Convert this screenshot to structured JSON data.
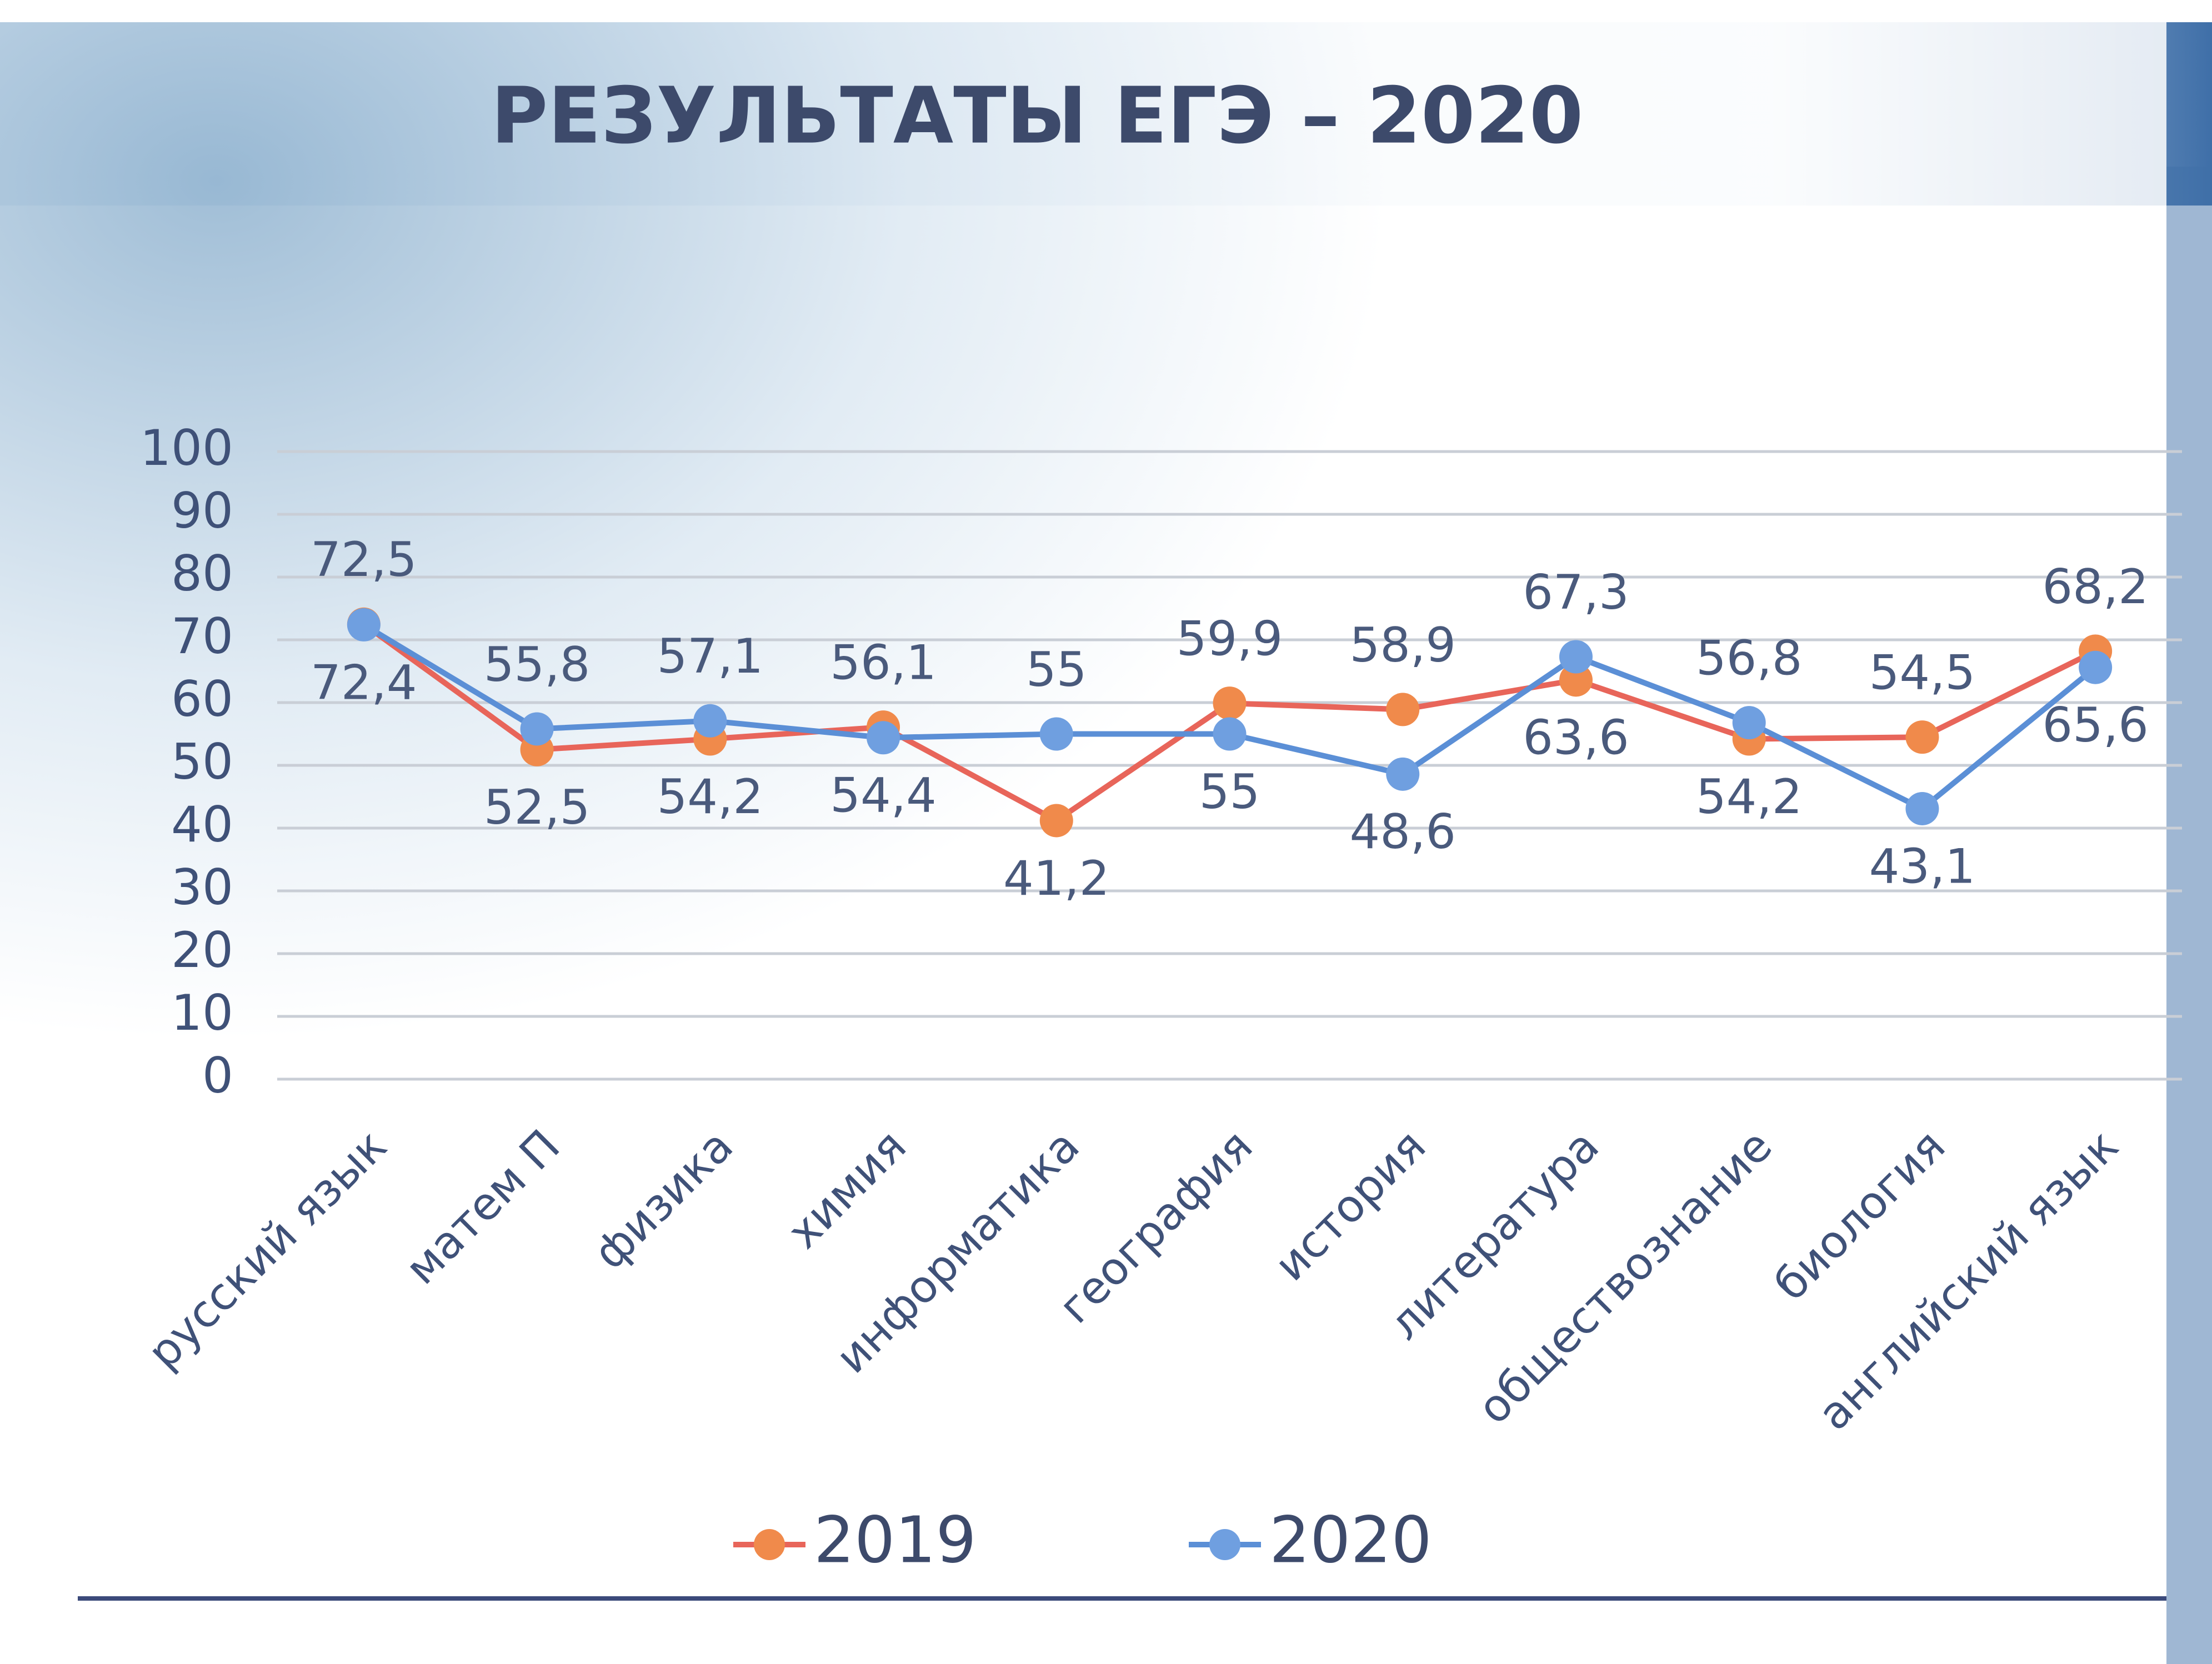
{
  "chart_data": {
    "type": "line",
    "title": "РЕЗУЛЬТАТЫ  ЕГЭ – 2020",
    "categories": [
      "русский язык",
      "матем П",
      "физика",
      "химия",
      "информатика",
      "география",
      "история",
      "литература",
      "обществознание",
      "биология",
      "английский язык"
    ],
    "series": [
      {
        "name": "2019",
        "color": "#e8655a",
        "marker_color": "#f08a4b",
        "values": [
          72.5,
          52.5,
          54.2,
          56.1,
          41.2,
          59.9,
          58.9,
          63.6,
          54.2,
          54.5,
          68.2
        ],
        "value_labels": [
          "72,5",
          "52,5",
          "54,2",
          "56,1",
          "41,2",
          "59,9",
          "58,9",
          "63,6",
          "54,2",
          "54,5",
          "68,2"
        ]
      },
      {
        "name": "2020",
        "color": "#5b8fd6",
        "marker_color": "#6f9fe0",
        "values": [
          72.4,
          55.8,
          57.1,
          54.4,
          55,
          55,
          48.6,
          67.3,
          56.8,
          43.1,
          65.6
        ],
        "value_labels": [
          "72,4",
          "55,8",
          "57,1",
          "54,4",
          "55",
          "55",
          "48,6",
          "67,3",
          "56,8",
          "43,1",
          "65,6"
        ]
      }
    ],
    "ylim": [
      0,
      100
    ],
    "yticks": [
      0,
      10,
      20,
      30,
      40,
      50,
      60,
      70,
      80,
      90,
      100
    ],
    "grid": true,
    "legend": "bottom"
  }
}
